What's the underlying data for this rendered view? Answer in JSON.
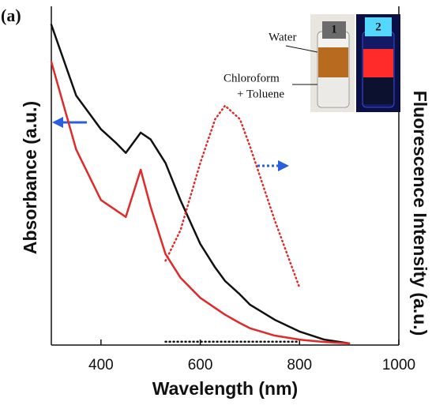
{
  "chart_data": {
    "type": "line",
    "panel_label": "(a)",
    "x_label": "Wavelength (nm)",
    "y_label": "Absorbance (a.u.)",
    "y2_label": "Fluorescence Intensity (a.u.)",
    "x": [
      300,
      350,
      400,
      430,
      450,
      480,
      500,
      530,
      560,
      600,
      630,
      650,
      680,
      700,
      750,
      800,
      850,
      900
    ],
    "series": [
      {
        "color": "#111111",
        "style": "solid",
        "values": [
          0.95,
          0.74,
          0.64,
          0.6,
          0.57,
          0.63,
          0.61,
          0.54,
          0.43,
          0.3,
          0.23,
          0.19,
          0.15,
          0.12,
          0.075,
          0.04,
          0.016,
          0.005
        ]
      },
      {
        "color": "#e02a2a",
        "style": "solid",
        "values": [
          0.84,
          0.58,
          0.43,
          0.4,
          0.38,
          0.52,
          0.41,
          0.27,
          0.2,
          0.14,
          0.11,
          0.09,
          0.065,
          0.05,
          0.028,
          0.016,
          0.009,
          0.005
        ]
      },
      {
        "color": "#e02a2a",
        "style": "dotted",
        "axis": "y2",
        "values": [
          null,
          null,
          null,
          null,
          null,
          null,
          null,
          0.25,
          0.34,
          0.54,
          0.67,
          0.71,
          0.67,
          0.59,
          0.37,
          0.17,
          null,
          null
        ]
      },
      {
        "color": "#111111",
        "style": "dotted",
        "axis": "y2",
        "values": [
          null,
          null,
          null,
          null,
          null,
          null,
          null,
          0.01,
          0.01,
          0.01,
          0.01,
          0.01,
          0.01,
          0.01,
          0.01,
          0.01,
          null,
          null
        ]
      }
    ],
    "xlim": [
      300,
      1000
    ],
    "xticks": [
      400,
      600,
      800,
      1000
    ],
    "ylim": [
      0,
      1
    ],
    "y2lim": [
      0,
      1
    ],
    "annotations": {
      "water": "Water",
      "chloroform": "Chloroform",
      "toluene": "+ Toluene",
      "vial_1": "1",
      "vial_2": "2"
    }
  }
}
